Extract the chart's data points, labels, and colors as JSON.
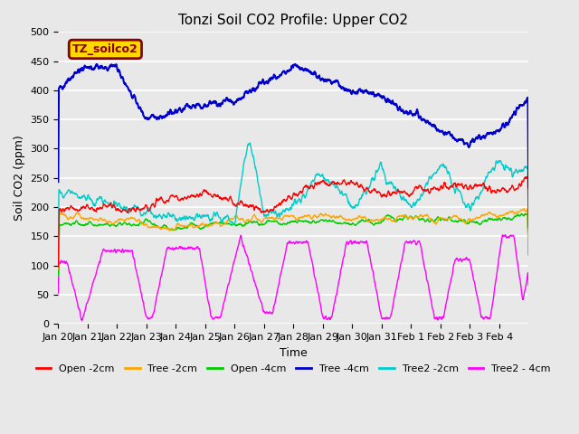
{
  "title": "Tonzi Soil CO2 Profile: Upper CO2",
  "xlabel": "Time",
  "ylabel": "Soil CO2 (ppm)",
  "ylim": [
    0,
    500
  ],
  "yticks": [
    0,
    50,
    100,
    150,
    200,
    250,
    300,
    350,
    400,
    450,
    500
  ],
  "legend_label": "TZ_soilco2",
  "legend_fg": "#8B0000",
  "legend_bg": "#FFD700",
  "series": {
    "Open -2cm": {
      "color": "#FF0000",
      "lw": 1.0
    },
    "Tree -2cm": {
      "color": "#FFA500",
      "lw": 1.0
    },
    "Open -4cm": {
      "color": "#00CC00",
      "lw": 1.0
    },
    "Tree -4cm": {
      "color": "#0000CC",
      "lw": 1.5
    },
    "Tree2 -2cm": {
      "color": "#00CCCC",
      "lw": 1.0
    },
    "Tree2 - 4cm": {
      "color": "#FF00FF",
      "lw": 1.0
    }
  },
  "x_tick_labels": [
    "Jan 20",
    "Jan 21",
    "Jan 22",
    "Jan 23",
    "Jan 24",
    "Jan 25",
    "Jan 26",
    "Jan 27",
    "Jan 28",
    "Jan 29",
    "Jan 30",
    "Jan 31",
    "Feb 1",
    "Feb 2",
    "Feb 3",
    "Feb 4"
  ],
  "n_days": 16,
  "figsize": [
    6.4,
    4.8
  ],
  "dpi": 100,
  "bg_color": "#e8e8e8"
}
